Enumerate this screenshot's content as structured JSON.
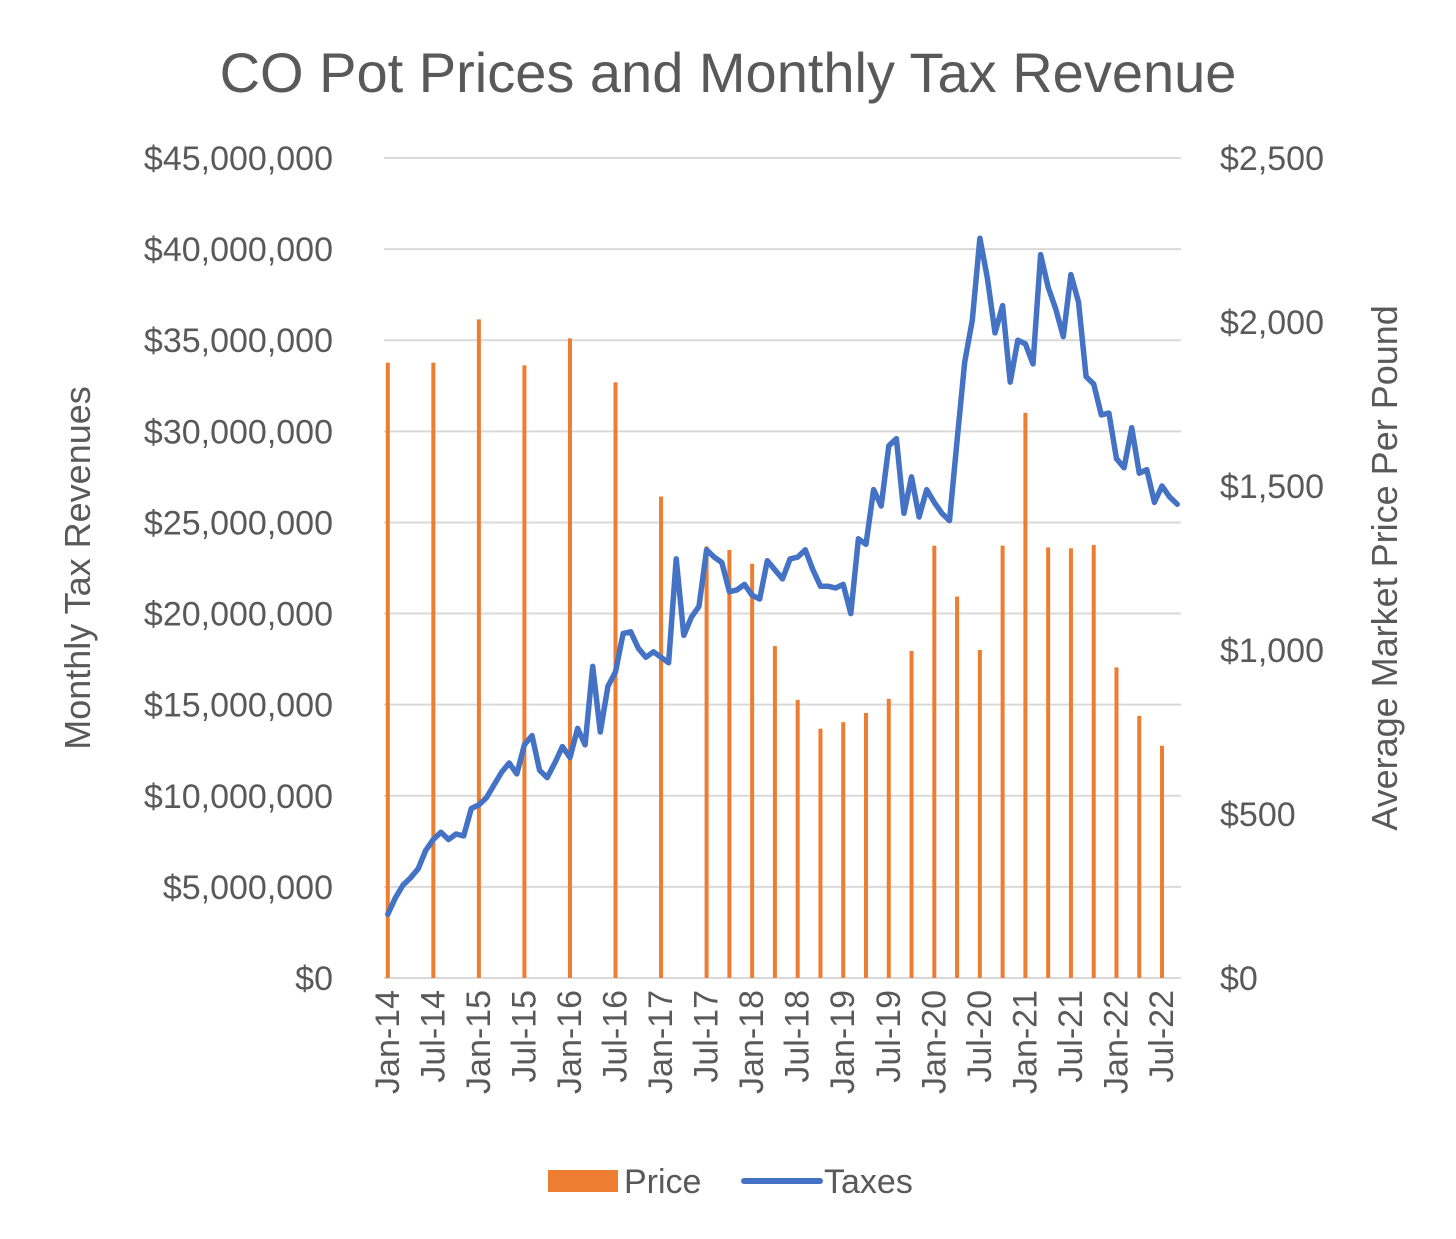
{
  "chart_data": {
    "type": "bar+line",
    "title": "CO Pot Prices and Monthly Tax Revenue",
    "y_left_label": "Monthly Tax Revenues",
    "y_right_label": "Average Market Price Per Pound",
    "y_left_range": [
      0,
      45000000
    ],
    "y_right_range": [
      0,
      2500
    ],
    "y_left_ticks": [
      "$0",
      "$5,000,000",
      "$10,000,000",
      "$15,000,000",
      "$20,000,000",
      "$25,000,000",
      "$30,000,000",
      "$35,000,000",
      "$40,000,000",
      "$45,000,000"
    ],
    "y_right_ticks": [
      "$0",
      "$500",
      "$1,000",
      "$1,500",
      "$2,000",
      "$2,500"
    ],
    "x_tick_labels": [
      "Jan-14",
      "Jul-14",
      "Jan-15",
      "Jul-15",
      "Jan-16",
      "Jul-16",
      "Jan-17",
      "Jul-17",
      "Jan-18",
      "Jul-18",
      "Jan-19",
      "Jul-19",
      "Jan-20",
      "Jul-20",
      "Jan-21",
      "Jul-21",
      "Jan-22",
      "Jul-22"
    ],
    "months": 105,
    "legend": [
      "Price",
      "Taxes"
    ],
    "colors": {
      "price": "#ED7D31",
      "taxes": "#4472C4",
      "grid": "#d9d9d9",
      "text": "#595959"
    },
    "price_series": {
      "name": "Price",
      "points": [
        {
          "month": 0,
          "value": 1876
        },
        {
          "month": 6,
          "value": 1876
        },
        {
          "month": 12,
          "value": 2008
        },
        {
          "month": 18,
          "value": 1868
        },
        {
          "month": 24,
          "value": 1950
        },
        {
          "month": 30,
          "value": 1816
        },
        {
          "month": 36,
          "value": 1468
        },
        {
          "month": 42,
          "value": 1316
        },
        {
          "month": 45,
          "value": 1305
        },
        {
          "month": 48,
          "value": 1263
        },
        {
          "month": 51,
          "value": 1012
        },
        {
          "month": 54,
          "value": 848
        },
        {
          "month": 57,
          "value": 760
        },
        {
          "month": 60,
          "value": 780
        },
        {
          "month": 63,
          "value": 808
        },
        {
          "month": 66,
          "value": 851
        },
        {
          "month": 69,
          "value": 997
        },
        {
          "month": 72,
          "value": 1318
        },
        {
          "month": 75,
          "value": 1163
        },
        {
          "month": 78,
          "value": 1000
        },
        {
          "month": 81,
          "value": 1318
        },
        {
          "month": 84,
          "value": 1723
        },
        {
          "month": 87,
          "value": 1313
        },
        {
          "month": 90,
          "value": 1310
        },
        {
          "month": 93,
          "value": 1320
        },
        {
          "month": 96,
          "value": 947
        },
        {
          "month": 99,
          "value": 799
        },
        {
          "month": 102,
          "value": 708
        }
      ]
    },
    "taxes_series": {
      "name": "Taxes",
      "values": [
        3500000,
        4400000,
        5100000,
        5500000,
        6000000,
        7000000,
        7600000,
        8000000,
        7600000,
        7900000,
        7800000,
        9300000,
        9500000,
        9900000,
        10600000,
        11300000,
        11800000,
        11200000,
        12800000,
        13300000,
        11400000,
        11000000,
        11800000,
        12700000,
        12100000,
        13700000,
        12800000,
        17100000,
        13500000,
        16000000,
        16800000,
        18900000,
        19000000,
        18100000,
        17600000,
        17900000,
        17600000,
        17300000,
        23000000,
        18800000,
        19800000,
        20400000,
        23500000,
        23100000,
        22800000,
        21200000,
        21300000,
        21600000,
        21000000,
        20800000,
        22900000,
        22400000,
        21900000,
        23000000,
        23100000,
        23500000,
        22400000,
        21500000,
        21500000,
        21400000,
        21600000,
        20000000,
        24100000,
        23800000,
        26800000,
        25900000,
        29200000,
        29600000,
        25500000,
        27500000,
        25300000,
        26800000,
        26100000,
        25500000,
        25100000,
        29500000,
        33800000,
        36100000,
        40600000,
        38400000,
        35400000,
        36900000,
        32700000,
        35000000,
        34800000,
        33700000,
        39700000,
        37900000,
        36700000,
        35200000,
        38600000,
        37100000,
        33000000,
        32600000,
        30900000,
        31000000,
        28500000,
        28000000,
        30200000,
        27700000,
        27900000,
        26100000,
        27000000,
        26400000,
        26000000
      ]
    }
  }
}
